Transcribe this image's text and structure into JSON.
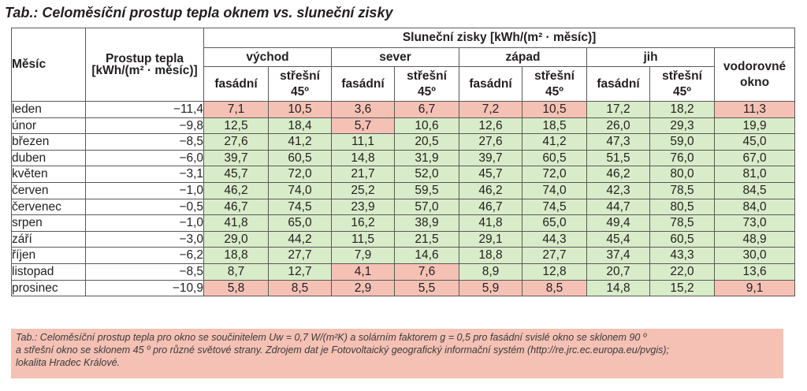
{
  "title": "Tab.: Celoměsíční prostup tepla oknem vs. sluneční zisky",
  "header": {
    "month": "Měsíc",
    "transfer": "Prostup tepla",
    "transfer_unit": "[kWh/(m² · měsíc)]",
    "solar": "Sluneční zisky [kWh/(m² · měsíc)]",
    "orientations": [
      "východ",
      "sever",
      "západ",
      "jih"
    ],
    "horizontal": "vodorovné okno",
    "facade": "fasádní",
    "roof": "střešní 45º"
  },
  "rows": [
    {
      "month": "leden",
      "transfer": "−11,4",
      "v": [
        [
          "7,1",
          "p"
        ],
        [
          "10,5",
          "p"
        ],
        [
          "3,6",
          "p"
        ],
        [
          "6,7",
          "p"
        ],
        [
          "7,2",
          "p"
        ],
        [
          "10,5",
          "p"
        ],
        [
          "17,2",
          "g"
        ],
        [
          "18,2",
          "g"
        ],
        [
          "11,3",
          "p"
        ]
      ]
    },
    {
      "month": "únor",
      "transfer": "−9,8",
      "v": [
        [
          "12,5",
          "g"
        ],
        [
          "18,4",
          "g"
        ],
        [
          "5,7",
          "p"
        ],
        [
          "10,6",
          "g"
        ],
        [
          "12,6",
          "g"
        ],
        [
          "18,5",
          "g"
        ],
        [
          "26,0",
          "g"
        ],
        [
          "29,3",
          "g"
        ],
        [
          "19,9",
          "g"
        ]
      ]
    },
    {
      "month": "březen",
      "transfer": "−8,5",
      "v": [
        [
          "27,6",
          "g"
        ],
        [
          "41,2",
          "g"
        ],
        [
          "11,1",
          "g"
        ],
        [
          "20,5",
          "g"
        ],
        [
          "27,6",
          "g"
        ],
        [
          "41,2",
          "g"
        ],
        [
          "47,3",
          "g"
        ],
        [
          "59,0",
          "g"
        ],
        [
          "45,0",
          "g"
        ]
      ]
    },
    {
      "month": "duben",
      "transfer": "−6,0",
      "v": [
        [
          "39,7",
          "g"
        ],
        [
          "60,5",
          "g"
        ],
        [
          "14,8",
          "g"
        ],
        [
          "31,9",
          "g"
        ],
        [
          "39,7",
          "g"
        ],
        [
          "60,5",
          "g"
        ],
        [
          "51,5",
          "g"
        ],
        [
          "76,0",
          "g"
        ],
        [
          "67,0",
          "g"
        ]
      ]
    },
    {
      "month": "květen",
      "transfer": "−3,1",
      "v": [
        [
          "45,7",
          "g"
        ],
        [
          "72,0",
          "g"
        ],
        [
          "21,7",
          "g"
        ],
        [
          "52,0",
          "g"
        ],
        [
          "45,7",
          "g"
        ],
        [
          "72,0",
          "g"
        ],
        [
          "46,2",
          "g"
        ],
        [
          "80,0",
          "g"
        ],
        [
          "81,0",
          "g"
        ]
      ]
    },
    {
      "month": "červen",
      "transfer": "−1,0",
      "v": [
        [
          "46,2",
          "g"
        ],
        [
          "74,0",
          "g"
        ],
        [
          "25,2",
          "g"
        ],
        [
          "59,5",
          "g"
        ],
        [
          "46,2",
          "g"
        ],
        [
          "74,0",
          "g"
        ],
        [
          "42,3",
          "g"
        ],
        [
          "78,5",
          "g"
        ],
        [
          "84,5",
          "g"
        ]
      ]
    },
    {
      "month": "červenec",
      "transfer": "−0,5",
      "v": [
        [
          "46,7",
          "g"
        ],
        [
          "74,5",
          "g"
        ],
        [
          "23,9",
          "g"
        ],
        [
          "57,0",
          "g"
        ],
        [
          "46,7",
          "g"
        ],
        [
          "74,5",
          "g"
        ],
        [
          "44,7",
          "g"
        ],
        [
          "80,5",
          "g"
        ],
        [
          "84,0",
          "g"
        ]
      ]
    },
    {
      "month": "srpen",
      "transfer": "−1,0",
      "v": [
        [
          "41,8",
          "g"
        ],
        [
          "65,0",
          "g"
        ],
        [
          "16,2",
          "g"
        ],
        [
          "38,9",
          "g"
        ],
        [
          "41,8",
          "g"
        ],
        [
          "65,0",
          "g"
        ],
        [
          "49,4",
          "g"
        ],
        [
          "78,5",
          "g"
        ],
        [
          "73,0",
          "g"
        ]
      ]
    },
    {
      "month": "září",
      "transfer": "−3,0",
      "v": [
        [
          "29,0",
          "g"
        ],
        [
          "44,2",
          "g"
        ],
        [
          "11,5",
          "g"
        ],
        [
          "21,5",
          "g"
        ],
        [
          "29,1",
          "g"
        ],
        [
          "44,3",
          "g"
        ],
        [
          "45,4",
          "g"
        ],
        [
          "60,5",
          "g"
        ],
        [
          "48,9",
          "g"
        ]
      ]
    },
    {
      "month": "říjen",
      "transfer": "−6,2",
      "v": [
        [
          "18,8",
          "g"
        ],
        [
          "27,7",
          "g"
        ],
        [
          "7,9",
          "g"
        ],
        [
          "14,6",
          "g"
        ],
        [
          "18,8",
          "g"
        ],
        [
          "27,7",
          "g"
        ],
        [
          "37,4",
          "g"
        ],
        [
          "43,3",
          "g"
        ],
        [
          "30,0",
          "g"
        ]
      ]
    },
    {
      "month": "listopad",
      "transfer": "−8,5",
      "v": [
        [
          "8,7",
          "g"
        ],
        [
          "12,7",
          "g"
        ],
        [
          "4,1",
          "p"
        ],
        [
          "7,6",
          "p"
        ],
        [
          "8,9",
          "g"
        ],
        [
          "12,8",
          "g"
        ],
        [
          "20,7",
          "g"
        ],
        [
          "22,0",
          "g"
        ],
        [
          "13,6",
          "g"
        ]
      ]
    },
    {
      "month": "prosinec",
      "transfer": "−10,9",
      "v": [
        [
          "5,8",
          "p"
        ],
        [
          "8,5",
          "p"
        ],
        [
          "2,9",
          "p"
        ],
        [
          "5,5",
          "p"
        ],
        [
          "5,9",
          "p"
        ],
        [
          "8,5",
          "p"
        ],
        [
          "14,8",
          "g"
        ],
        [
          "15,2",
          "g"
        ],
        [
          "9,1",
          "p"
        ]
      ]
    }
  ],
  "footnote": [
    "Tab.: Celoměsíční prostup tepla pro okno se součinitelem Uw = 0,7 W/(m²K) a solárním faktorem g = 0,5 pro fasádní svislé okno se sklonem 90 º",
    "a střešní okno se sklonem 45 º pro různé světové strany. Zdrojem dat je Fotovoltaický geografický informační systém (http://re.jrc.ec.europa.eu/pvgis);",
    "lokalita Hradec Králové."
  ],
  "colors": {
    "positive": "#d9ecc9",
    "negative": "#f5c1b5",
    "border": "#58595b"
  }
}
